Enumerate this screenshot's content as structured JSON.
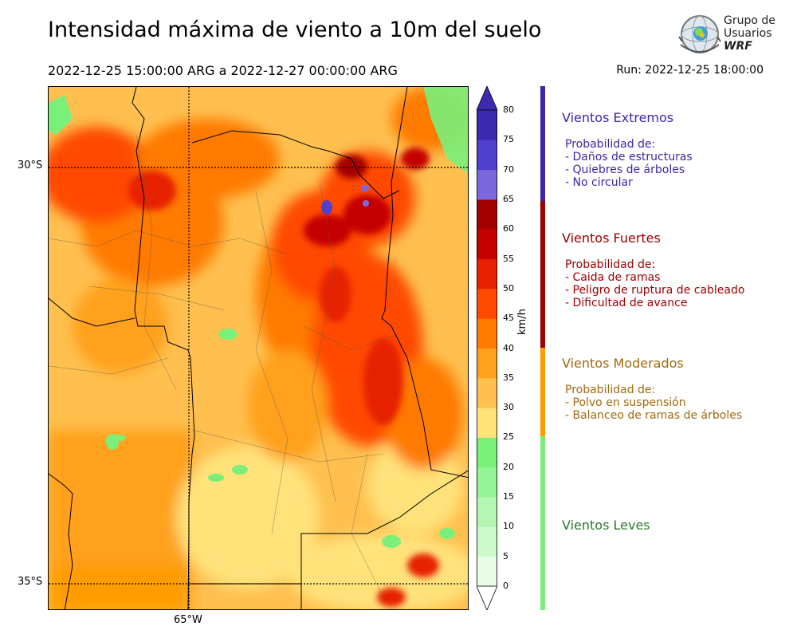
{
  "header": {
    "title": "Intensidad máxima de viento a 10m del suelo",
    "period": "2022-12-25 15:00:00 ARG  a  2022-12-27 00:00:00 ARG",
    "run": "Run: 2022-12-25 18:00:00"
  },
  "logo": {
    "line1": "Grupo de",
    "line2": "Usuarios",
    "line3": "WRF"
  },
  "map": {
    "lat_labels": [
      "30°S",
      "35°S"
    ],
    "lon_labels": [
      "65°W"
    ],
    "grid": "dotted"
  },
  "colorbar": {
    "unit": "km/h",
    "ticks": [
      "80",
      "75",
      "70",
      "65",
      "60",
      "55",
      "50",
      "45",
      "40",
      "35",
      "30",
      "25",
      "20",
      "15",
      "10",
      "5",
      "0"
    ],
    "colors": [
      "#e8fce8",
      "#cdfacd",
      "#b4f6b4",
      "#97f397",
      "#7aef7a",
      "#ffe27a",
      "#ffc04f",
      "#ffa11e",
      "#ff7a00",
      "#ff4a00",
      "#e62000",
      "#c40000",
      "#a30000",
      "#7b68dd",
      "#5040cc",
      "#3d2ab0"
    ],
    "extend": "both"
  },
  "categories": [
    {
      "title": "Vientos Extremos",
      "color": "#3a28a8",
      "desc": [
        "Probabilidad de:",
        "- Daños de estructuras",
        "- Quiebres de árboles",
        "- No circular"
      ]
    },
    {
      "title": "Vientos Fuertes",
      "color": "#a00000",
      "desc": [
        "Probabilidad de:",
        "- Caida de ramas",
        "- Peligro de ruptura de cableado",
        "- Dificultad de avance"
      ]
    },
    {
      "title": "Vientos Moderados",
      "color": "#a06a10",
      "barcolor": "#ff9d00",
      "desc": [
        "Probabilidad de:",
        "- Polvo en suspensión",
        "- Balanceo de ramas de árboles"
      ]
    },
    {
      "title": "Vientos Leves",
      "color": "#2a7a2a",
      "barcolor": "#7aef7a",
      "desc": []
    }
  ]
}
